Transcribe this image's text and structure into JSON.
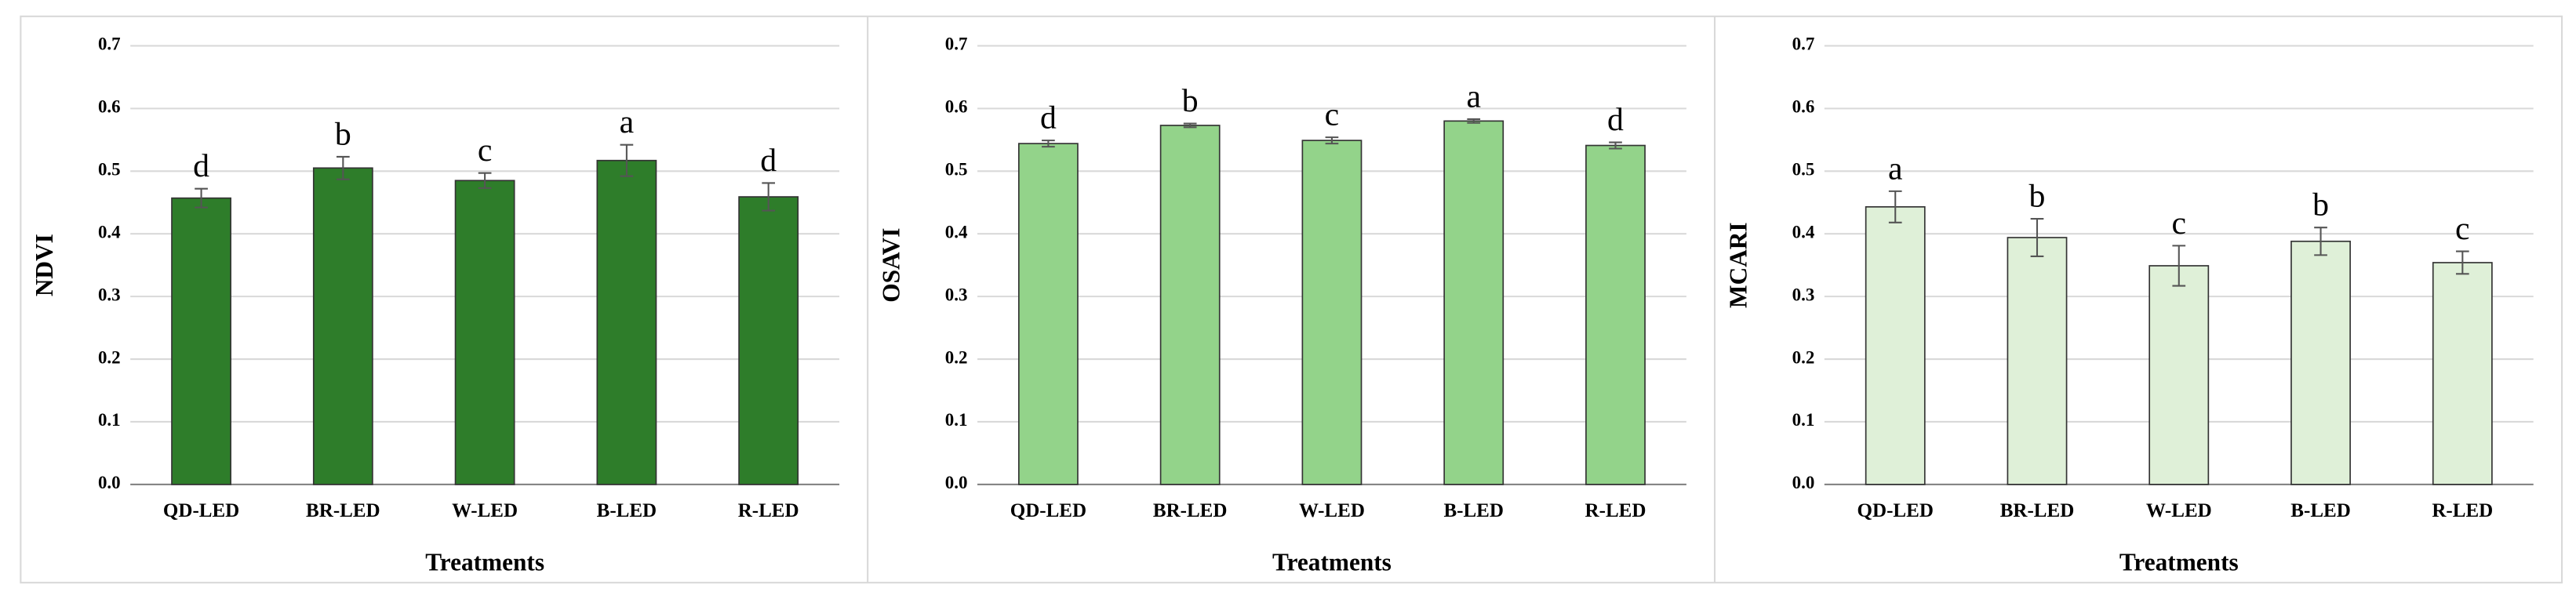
{
  "chart_data": [
    {
      "type": "bar",
      "ylabel": "NDVI",
      "xlabel": "Treatments",
      "categories": [
        "QD-LED",
        "BR-LED",
        "W-LED",
        "B-LED",
        "R-LED"
      ],
      "values": [
        0.457,
        0.505,
        0.485,
        0.517,
        0.459
      ],
      "errors": [
        0.015,
        0.018,
        0.012,
        0.025,
        0.022
      ],
      "annotations": [
        "d",
        "b",
        "c",
        "a",
        "d"
      ],
      "color": "#2e7d2a",
      "ylim": [
        0,
        0.7
      ],
      "yticks": [
        {
          "value": 0,
          "label": "0.0"
        },
        0.1,
        0.2,
        0.3,
        0.4,
        0.5,
        0.6,
        0.7
      ],
      "grid": true
    },
    {
      "type": "bar",
      "ylabel": "OSAVI",
      "xlabel": "Treatments",
      "categories": [
        "QD-LED",
        "BR-LED",
        "W-LED",
        "B-LED",
        "R-LED"
      ],
      "values": [
        0.544,
        0.573,
        0.549,
        0.58,
        0.541
      ],
      "errors": [
        0.005,
        0.003,
        0.005,
        0.003,
        0.005
      ],
      "annotations": [
        "d",
        "b",
        "c",
        "a",
        "d"
      ],
      "color": "#93d38a",
      "ylim": [
        0,
        0.7
      ],
      "yticks": [
        {
          "value": 0,
          "label": "0.0"
        },
        0.1,
        0.2,
        0.3,
        0.4,
        0.5,
        0.6,
        0.7
      ],
      "grid": true
    },
    {
      "type": "bar",
      "ylabel": "MCARI",
      "xlabel": "Treatments",
      "categories": [
        "QD-LED",
        "BR-LED",
        "W-LED",
        "B-LED",
        "R-LED"
      ],
      "values": [
        0.443,
        0.394,
        0.349,
        0.388,
        0.354
      ],
      "errors": [
        0.025,
        0.03,
        0.032,
        0.022,
        0.018
      ],
      "annotations": [
        "a",
        "b",
        "c",
        "b",
        "c"
      ],
      "color": "#dff0d8",
      "ylim": [
        0,
        0.7
      ],
      "yticks": [
        {
          "value": 0,
          "label": "0.0"
        },
        0.1,
        0.2,
        0.3,
        0.4,
        0.5,
        0.6,
        0.7
      ],
      "grid": true
    }
  ]
}
